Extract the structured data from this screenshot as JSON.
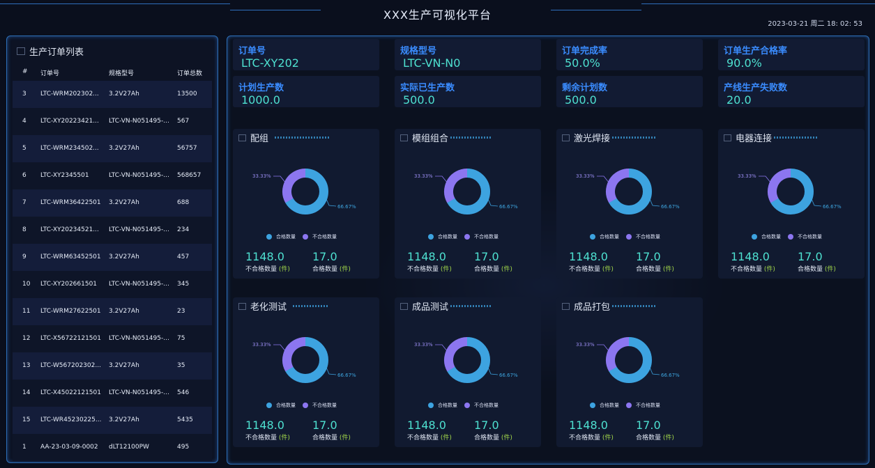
{
  "header": {
    "title": "XXX生产可视化平台",
    "datetime": "2023-03-21 周二 18: 02: 53"
  },
  "orders": {
    "title": "生产订单列表",
    "columns": [
      "#",
      "订单号",
      "规格型号",
      "订单总数"
    ],
    "rows": [
      [
        "3",
        "LTC-WRM202302...",
        "3.2V27Ah",
        "13500"
      ],
      [
        "4",
        "LTC-XY20223421...",
        "LTC-VN-N051495-...",
        "567"
      ],
      [
        "5",
        "LTC-WRM234502...",
        "3.2V27Ah",
        "56757"
      ],
      [
        "6",
        "LTC-XY2345501",
        "LTC-VN-N051495-...",
        "568657"
      ],
      [
        "7",
        "LTC-WRM36422501",
        "3.2V27Ah",
        "688"
      ],
      [
        "8",
        "LTC-XY20234521...",
        "LTC-VN-N051495-...",
        "234"
      ],
      [
        "9",
        "LTC-WRM63452501",
        "3.2V27Ah",
        "457"
      ],
      [
        "10",
        "LTC-XY202661501",
        "LTC-VN-N051495-...",
        "345"
      ],
      [
        "11",
        "LTC-WRM27622501",
        "3.2V27Ah",
        "23"
      ],
      [
        "12",
        "LTC-X56722121501",
        "LTC-VN-N051495-...",
        "75"
      ],
      [
        "13",
        "LTC-W567202302...",
        "3.2V27Ah",
        "35"
      ],
      [
        "14",
        "LTC-X45022121501",
        "LTC-VN-N051495-...",
        "546"
      ],
      [
        "15",
        "LTC-WR45230225...",
        "3.2V27Ah",
        "5435"
      ],
      [
        "1",
        "AA-23-03-09-0002",
        "dLT12100PW",
        "495"
      ]
    ]
  },
  "info": [
    {
      "label": "订单号",
      "value": "LTC-XY202"
    },
    {
      "label": "规格型号",
      "value": "LTC-VN-N0"
    },
    {
      "label": "订单完成率",
      "value": "50.0%"
    },
    {
      "label": "订单生产合格率",
      "value": "90.0%"
    },
    {
      "label": "计划生产数",
      "value": "1000.0"
    },
    {
      "label": "实际已生产数",
      "value": "500.0"
    },
    {
      "label": "剩余计划数",
      "value": "500.0"
    },
    {
      "label": "产线生产失败数",
      "value": "20.0"
    }
  ],
  "legend": {
    "qualified": "合格数量",
    "unqualified": "不合格数量"
  },
  "colors": {
    "qualified": "#3da3e0",
    "unqualified": "#8c76f0",
    "accent": "#3a8cff",
    "value": "#4ee0d0"
  },
  "stations": [
    {
      "name": "配组",
      "qualified_pct": "66.67%",
      "unqualified_pct": "33.33%",
      "qualified_share": 0.6667,
      "unqualified_value": "1148.0",
      "unqualified_label": "不合格数量",
      "qualified_value": "17.0",
      "qualified_label": "合格数量",
      "unit": "(件)"
    },
    {
      "name": "模组组合",
      "qualified_pct": "66.67%",
      "unqualified_pct": "33.33%",
      "qualified_share": 0.6667,
      "unqualified_value": "1148.0",
      "unqualified_label": "不合格数量",
      "qualified_value": "17.0",
      "qualified_label": "合格数量",
      "unit": "(件)"
    },
    {
      "name": "激光焊接",
      "qualified_pct": "66.67%",
      "unqualified_pct": "33.33%",
      "qualified_share": 0.6667,
      "unqualified_value": "1148.0",
      "unqualified_label": "不合格数量",
      "qualified_value": "17.0",
      "qualified_label": "合格数量",
      "unit": "(件)"
    },
    {
      "name": "电器连接",
      "qualified_pct": "66.67%",
      "unqualified_pct": "33.33%",
      "qualified_share": 0.6667,
      "unqualified_value": "1148.0",
      "unqualified_label": "不合格数量",
      "qualified_value": "17.0",
      "qualified_label": "合格数量",
      "unit": "(件)"
    },
    {
      "name": "老化测试",
      "qualified_pct": "66.67%",
      "unqualified_pct": "33.33%",
      "qualified_share": 0.6667,
      "unqualified_value": "1148.0",
      "unqualified_label": "不合格数量",
      "qualified_value": "17.0",
      "qualified_label": "合格数量",
      "unit": "(件)"
    },
    {
      "name": "成品测试",
      "qualified_pct": "66.67%",
      "unqualified_pct": "33.33%",
      "qualified_share": 0.6667,
      "unqualified_value": "1148.0",
      "unqualified_label": "不合格数量",
      "qualified_value": "17.0",
      "qualified_label": "合格数量",
      "unit": "(件)"
    },
    {
      "name": "成品打包",
      "qualified_pct": "66.67%",
      "unqualified_pct": "33.33%",
      "qualified_share": 0.6667,
      "unqualified_value": "1148.0",
      "unqualified_label": "不合格数量",
      "qualified_value": "17.0",
      "qualified_label": "合格数量",
      "unit": "(件)"
    }
  ]
}
